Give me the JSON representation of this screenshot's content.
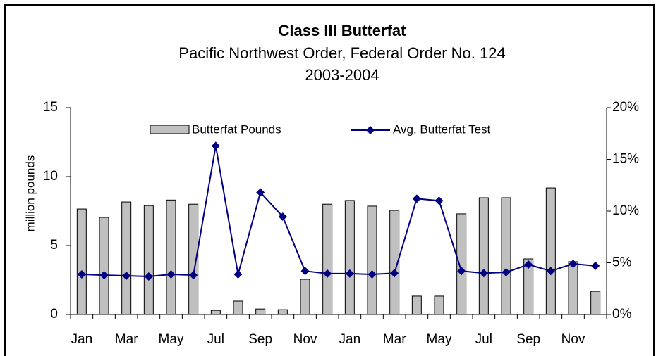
{
  "chart_data": {
    "type": "bar_line",
    "title": "Class III Butterfat",
    "subtitle": "Pacific Northwest Order, Federal Order No. 124",
    "subtitle2": "2003-2004",
    "y_label": "million pounds",
    "categories": [
      "Jan",
      null,
      "Mar",
      null,
      "May",
      null,
      "Jul",
      null,
      "Sep",
      null,
      "Nov",
      null,
      "Jan",
      null,
      "Mar",
      null,
      "May",
      null,
      "Jul",
      null,
      "Sep",
      null,
      "Nov",
      null
    ],
    "series": [
      {
        "name": "Butterfat Pounds",
        "color": "#c0c0c0",
        "values": [
          7.65,
          7.04,
          8.16,
          7.9,
          8.3,
          8.0,
          0.3,
          0.97,
          0.4,
          0.35,
          2.55,
          8.0,
          8.27,
          7.86,
          7.55,
          1.33,
          1.33,
          7.3,
          8.47,
          8.47,
          4.03,
          9.18,
          3.83,
          1.68
        ]
      },
      {
        "name": "Avg. Butterfat Test",
        "color": "#000080",
        "axis": "y2",
        "values": [
          3.88,
          3.8,
          3.74,
          3.67,
          3.88,
          3.8,
          16.3,
          3.88,
          11.8,
          9.46,
          4.2,
          3.95,
          3.95,
          3.88,
          4.0,
          11.2,
          11.0,
          4.2,
          4.0,
          4.08,
          4.83,
          4.2,
          4.9,
          4.7
        ]
      }
    ],
    "ylim": [
      0,
      15
    ],
    "yticks": [
      0,
      5,
      10,
      15
    ],
    "y2lim": [
      0,
      20
    ],
    "y2ticks": [
      {
        "value": 0,
        "label": "0%"
      },
      {
        "value": 5,
        "label": "5%"
      },
      {
        "value": 10,
        "label": "10%"
      },
      {
        "value": 15,
        "label": "15%"
      },
      {
        "value": 20,
        "label": "20%"
      }
    ]
  }
}
